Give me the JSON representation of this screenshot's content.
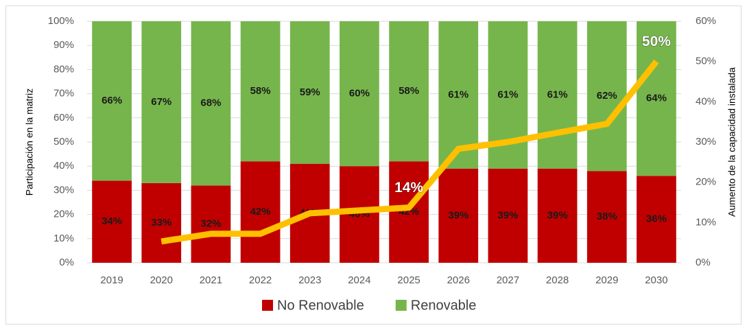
{
  "chart_data": {
    "type": "bar",
    "stacked": true,
    "categories": [
      "2019",
      "2020",
      "2021",
      "2022",
      "2023",
      "2024",
      "2025",
      "2026",
      "2027",
      "2028",
      "2029",
      "2030"
    ],
    "series": [
      {
        "name": "No Renovable",
        "type": "bar",
        "color": "#c00000",
        "values": [
          34,
          33,
          32,
          42,
          41,
          40,
          42,
          39,
          39,
          39,
          38,
          36
        ],
        "value_labels": [
          "34%",
          "33%",
          "32%",
          "42%",
          "41%",
          "40%",
          "42%",
          "39%",
          "39%",
          "39%",
          "38%",
          "36%"
        ]
      },
      {
        "name": "Renovable",
        "type": "bar",
        "color": "#76b54c",
        "values": [
          66,
          67,
          68,
          58,
          59,
          60,
          58,
          61,
          61,
          61,
          62,
          64
        ],
        "value_labels": [
          "66%",
          "67%",
          "68%",
          "58%",
          "59%",
          "60%",
          "58%",
          "61%",
          "61%",
          "61%",
          "62%",
          "64%"
        ]
      },
      {
        "type": "line",
        "axis": "y2",
        "color": "#ffc000",
        "values": [
          null,
          5.3,
          7.2,
          7.2,
          12.3,
          13,
          13.7,
          28.3,
          30,
          32.3,
          34.5,
          50
        ],
        "value_labels": [
          null,
          null,
          null,
          null,
          null,
          null,
          "14%",
          null,
          null,
          null,
          null,
          "50%"
        ]
      }
    ],
    "y_label": "Participación en la matriz",
    "y2_label": "Aumento de la capacidad instalada",
    "ylim": [
      0,
      100
    ],
    "yticks": [
      {
        "value": 0,
        "label": "0%"
      },
      {
        "value": 10,
        "label": "10%"
      },
      {
        "value": 20,
        "label": "20%"
      },
      {
        "value": 30,
        "label": "30%"
      },
      {
        "value": 40,
        "label": "40%"
      },
      {
        "value": 50,
        "label": "50%"
      },
      {
        "value": 60,
        "label": "60%"
      },
      {
        "value": 70,
        "label": "70%"
      },
      {
        "value": 80,
        "label": "80%"
      },
      {
        "value": 90,
        "label": "90%"
      },
      {
        "value": 100,
        "label": "100%"
      }
    ],
    "y2lim": [
      0,
      60
    ],
    "y2ticks": [
      {
        "value": 0,
        "label": "0%"
      },
      {
        "value": 10,
        "label": "10%"
      },
      {
        "value": 20,
        "label": "20%"
      },
      {
        "value": 30,
        "label": "30%"
      },
      {
        "value": 40,
        "label": "40%"
      },
      {
        "value": 50,
        "label": "50%"
      },
      {
        "value": 60,
        "label": "60%"
      }
    ],
    "grid": true,
    "legend": "bottom"
  }
}
